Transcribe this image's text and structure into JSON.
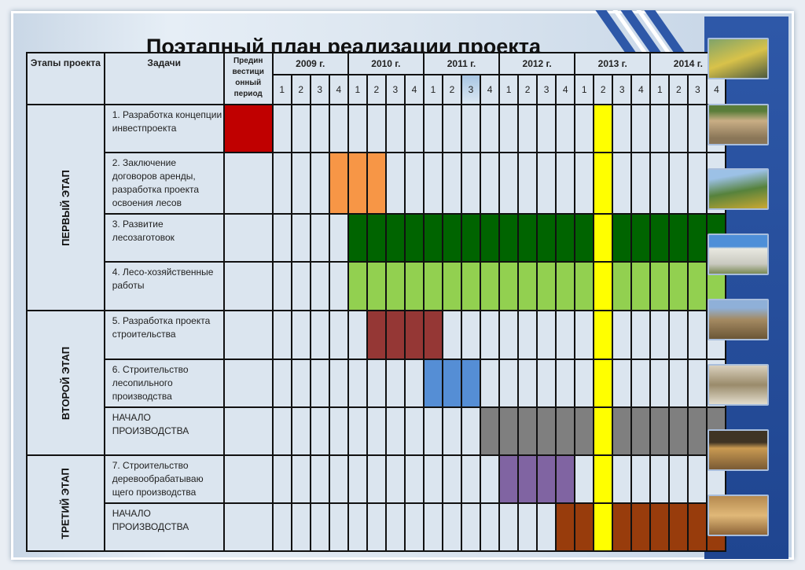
{
  "title": "Поэтапный план реализации проекта",
  "header": {
    "stages": "Этапы проекта",
    "tasks": "Задачи",
    "pre": "Предин вестици онный период"
  },
  "years": [
    "2009 г.",
    "2010 г.",
    "2011 г.",
    "2012 г.",
    "2013 г.",
    "2014 г."
  ],
  "quarters": [
    "1",
    "2",
    "3",
    "4"
  ],
  "highlight_header_quarter": {
    "year": "2011 г.",
    "quarter": 3
  },
  "milestone": {
    "year": "2013 г.",
    "quarter": 2,
    "color": "#ffff00"
  },
  "stages": [
    {
      "label": "ПЕРВЫЙ ЭТАП",
      "rows": 4
    },
    {
      "label": "ВТОРОЙ ЭТАП",
      "rows": 3
    },
    {
      "label": "ТРЕТИЙ ЭТАП",
      "rows": 2
    }
  ],
  "tasks": [
    {
      "label": "1. Разработка концепции инвестпроекта",
      "pre": true,
      "start": null,
      "end": null,
      "color": "#c00000"
    },
    {
      "label": "2. Заключение договоров аренды, разработка проекта освоения лесов",
      "pre": false,
      "start": 3,
      "end": 5,
      "color": "#f79646"
    },
    {
      "label": "3. Развитие лесозаготовок",
      "pre": false,
      "start": 4,
      "end": 23,
      "color": "#006400"
    },
    {
      "label": "4. Лесо-хозяйственные работы",
      "pre": false,
      "start": 4,
      "end": 23,
      "color": "#92d050"
    },
    {
      "label": "5. Разработка проекта строительства",
      "pre": false,
      "start": 5,
      "end": 8,
      "color": "#953735"
    },
    {
      "label": "6. Строительство лесопильного производства",
      "pre": false,
      "start": 8,
      "end": 10,
      "color": "#558ed5"
    },
    {
      "label": "НАЧАЛО ПРОИЗВОДСТВА",
      "pre": false,
      "start": 11,
      "end": 23,
      "color": "#7f7f7f"
    },
    {
      "label": "7. Строительство деревообрабатываю щего производства",
      "pre": false,
      "start": 12,
      "end": 15,
      "color": "#8064a2"
    },
    {
      "label": "НАЧАЛО ПРОИЗВОДСТВА",
      "pre": false,
      "start": 15,
      "end": 23,
      "color": "#983c0c"
    }
  ],
  "photos": [
    "forestry-machine",
    "log-pile",
    "harvester",
    "sawmill-building",
    "sawmill-yard",
    "woodworking-machine",
    "lumber-stack",
    "timber-beams"
  ]
}
